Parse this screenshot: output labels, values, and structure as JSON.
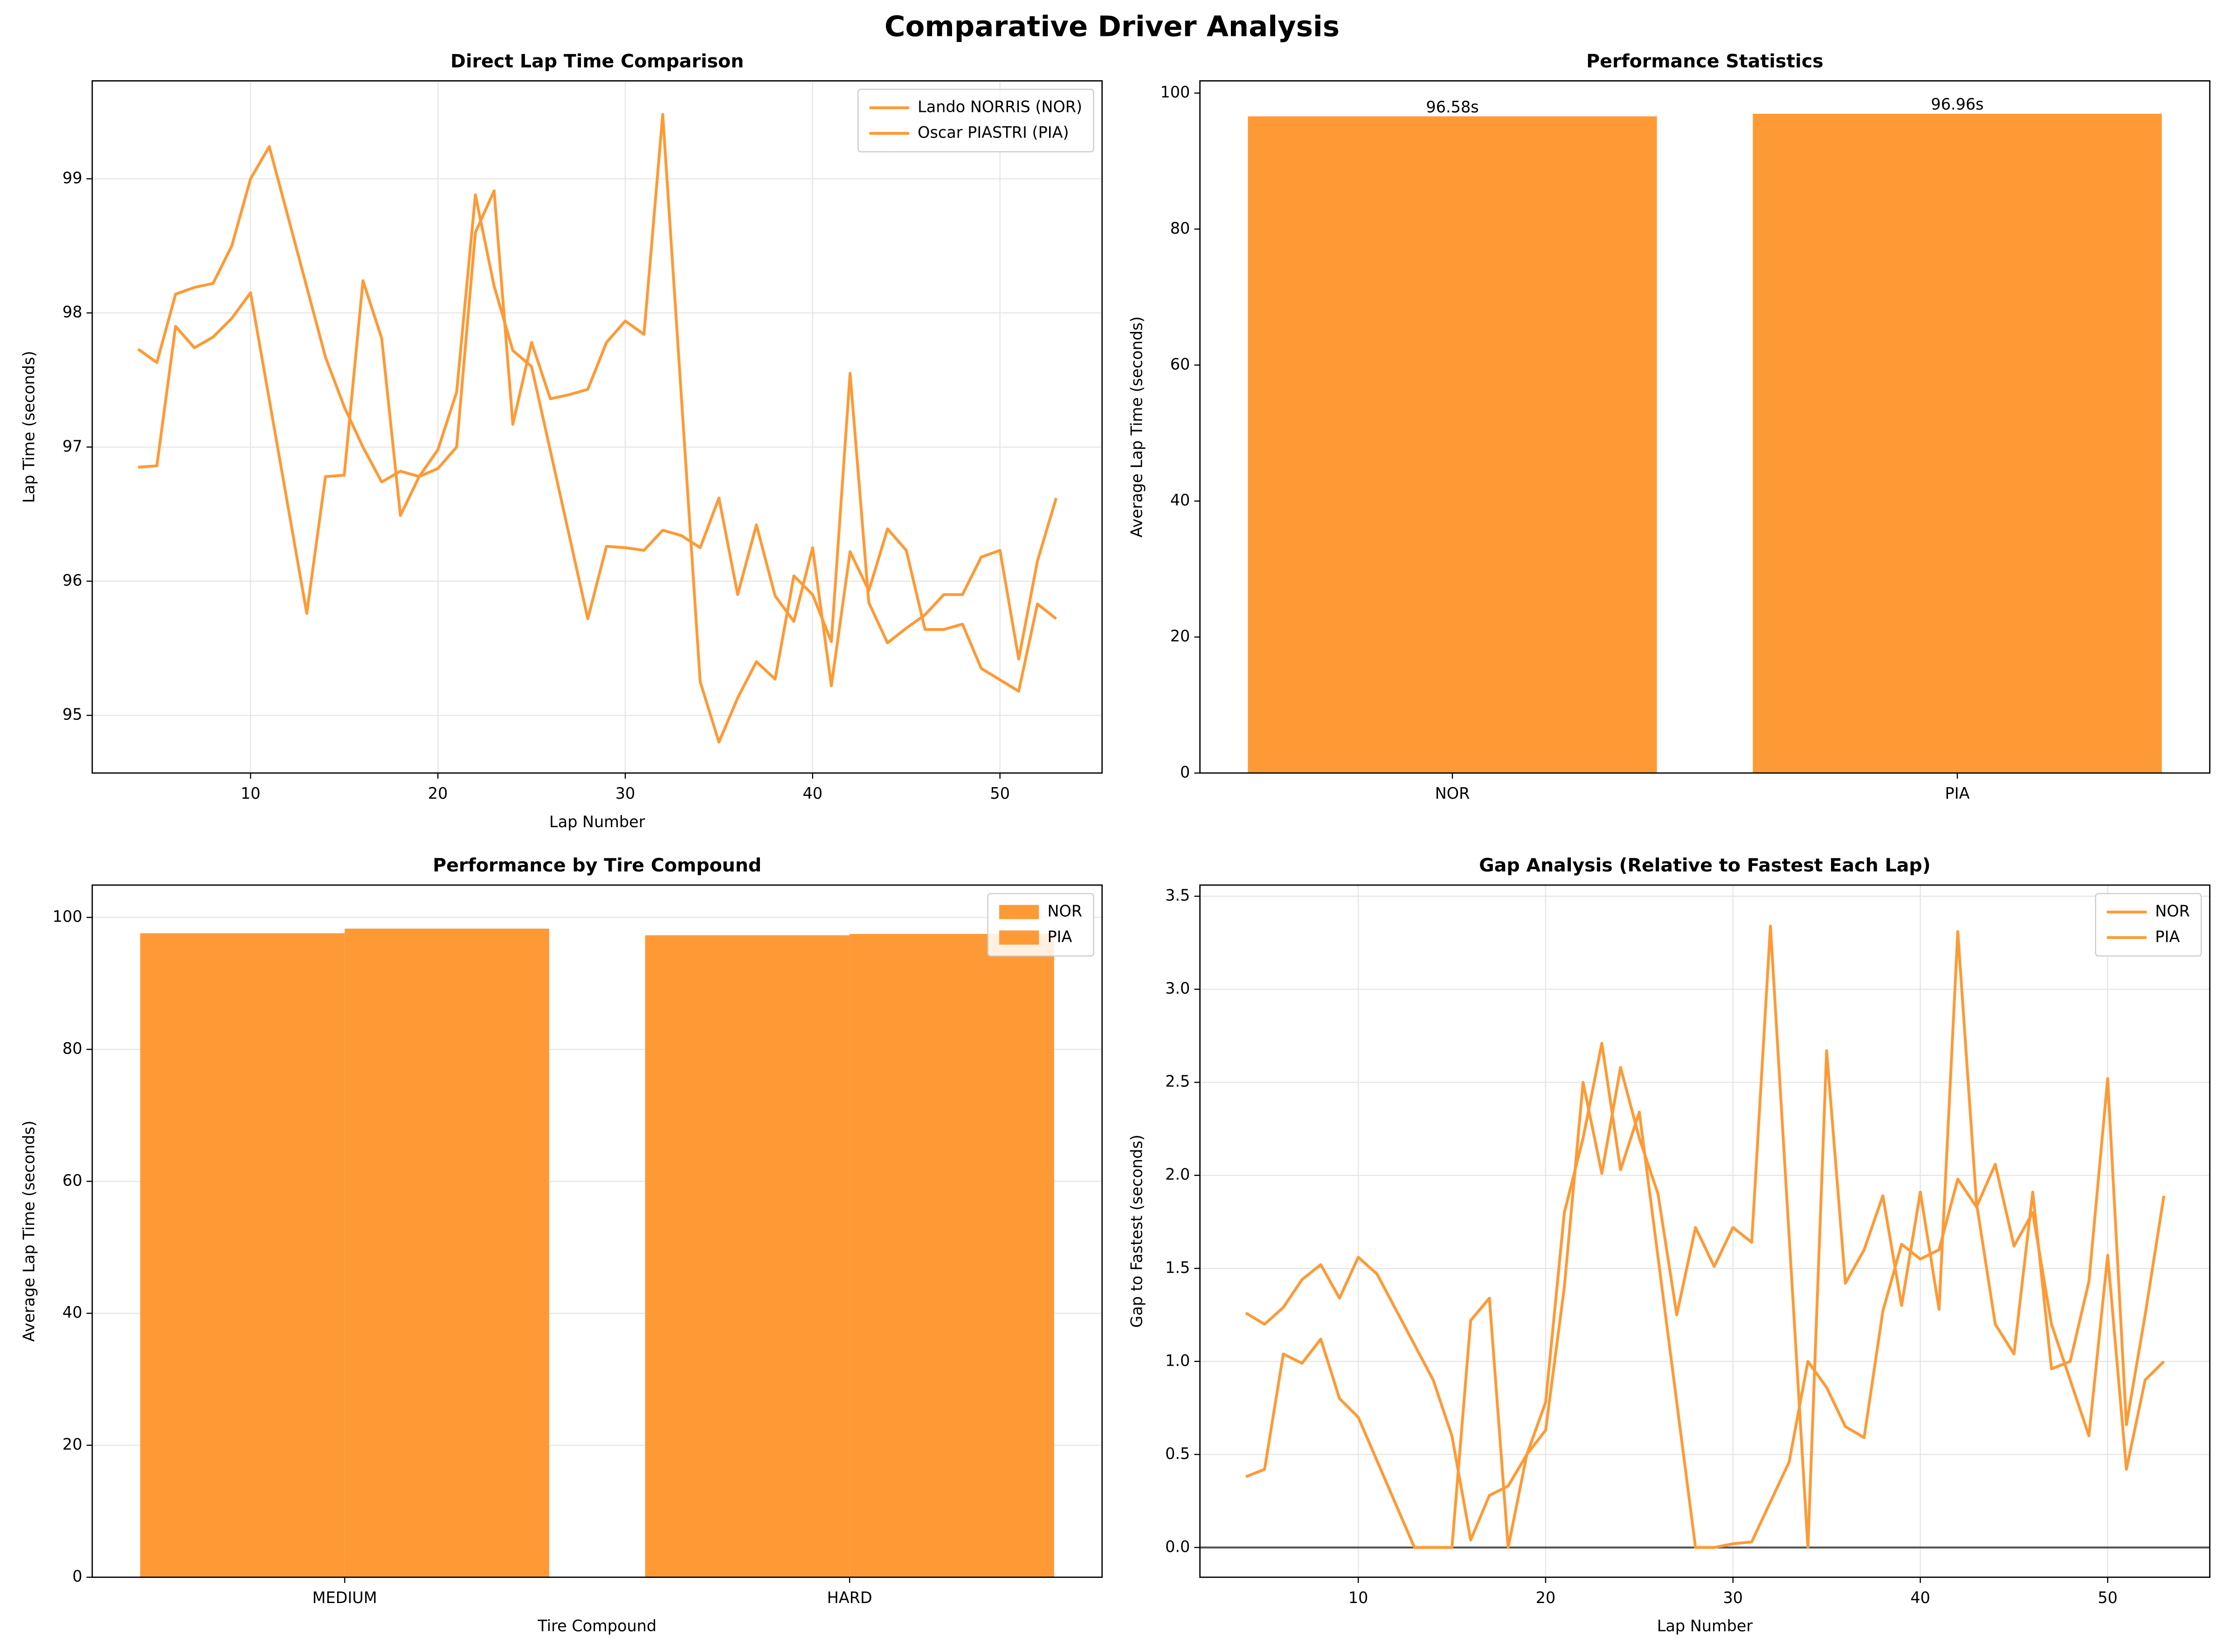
{
  "title": "Comparative Driver Analysis",
  "chart_data": [
    {
      "type": "line",
      "title": "Direct Lap Time Comparison",
      "xlabel": "Lap Number",
      "ylabel": "Lap Time (seconds)",
      "xlim": [
        1.55,
        55.45
      ],
      "xticks": [
        10,
        20,
        30,
        40,
        50
      ],
      "ylim": [
        94.57,
        99.73
      ],
      "yticks": [
        95,
        96,
        97,
        98,
        99
      ],
      "grid": true,
      "legend": "upper right",
      "series": [
        {
          "name": "Lando NORRIS (NOR)",
          "color": "#fe9a36",
          "x": [
            4,
            5,
            6,
            7,
            8,
            9,
            10,
            13,
            14,
            15,
            16,
            17,
            18,
            19,
            20,
            21,
            22,
            23,
            24,
            25,
            28,
            29,
            30,
            31,
            32,
            33,
            34,
            35,
            36,
            37,
            38,
            39,
            40,
            41,
            42,
            43,
            44,
            45,
            46,
            47,
            48,
            49,
            51,
            52,
            53
          ],
          "values": [
            96.85,
            96.86,
            97.9,
            97.74,
            97.82,
            97.96,
            98.15,
            95.76,
            96.78,
            96.79,
            98.24,
            97.81,
            96.49,
            96.78,
            96.98,
            97.41,
            98.88,
            98.2,
            97.72,
            97.6,
            95.72,
            96.26,
            96.25,
            96.23,
            96.38,
            96.34,
            96.25,
            96.62,
            95.9,
            96.42,
            95.89,
            95.7,
            96.25,
            95.22,
            96.22,
            95.93,
            96.39,
            96.23,
            95.64,
            95.64,
            95.68,
            95.35,
            95.18,
            95.83,
            95.72
          ]
        },
        {
          "name": "Oscar PIASTRI (PIA)",
          "color": "#fe9a36",
          "x": [
            4,
            5,
            6,
            7,
            8,
            9,
            10,
            11,
            14,
            15,
            16,
            17,
            18,
            19,
            20,
            21,
            22,
            23,
            24,
            25,
            26,
            27,
            28,
            29,
            30,
            31,
            32,
            34,
            35,
            36,
            37,
            38,
            39,
            40,
            41,
            42,
            43,
            44,
            45,
            46,
            47,
            48,
            49,
            50,
            51,
            52,
            53
          ],
          "values": [
            97.73,
            97.63,
            98.14,
            98.19,
            98.22,
            98.5,
            99.0,
            99.24,
            97.67,
            97.3,
            97.0,
            96.74,
            96.82,
            96.78,
            96.84,
            97.0,
            98.6,
            98.91,
            97.17,
            97.78,
            97.36,
            97.39,
            97.43,
            97.78,
            97.94,
            97.84,
            99.48,
            95.25,
            94.8,
            95.13,
            95.4,
            95.27,
            96.04,
            95.9,
            95.55,
            97.55,
            95.84,
            95.54,
            95.65,
            95.75,
            95.9,
            95.9,
            96.18,
            96.23,
            95.42,
            96.15,
            96.62
          ]
        }
      ]
    },
    {
      "type": "bar",
      "title": "Performance Statistics",
      "ylabel": "Average Lap Time (seconds)",
      "categories": [
        "NOR",
        "PIA"
      ],
      "values": [
        96.58,
        96.96
      ],
      "value_labels": [
        "96.58s",
        "96.96s"
      ],
      "color": "#fe9a36",
      "ylim": [
        0,
        101.8
      ],
      "yticks": [
        0,
        20,
        40,
        60,
        80,
        100
      ],
      "grid": false
    },
    {
      "type": "bar",
      "title": "Performance by Tire Compound",
      "xlabel": "Tire Compound",
      "ylabel": "Average Lap Time (seconds)",
      "categories": [
        "MEDIUM",
        "HARD"
      ],
      "ylim": [
        0,
        104.9
      ],
      "yticks": [
        0,
        20,
        40,
        60,
        80,
        100
      ],
      "grid": true,
      "legend": "upper right",
      "series": [
        {
          "name": "NOR",
          "color": "#fe9a36",
          "values": [
            97.6,
            97.3
          ]
        },
        {
          "name": "PIA",
          "color": "#fe9a36",
          "values": [
            98.3,
            97.5
          ]
        }
      ]
    },
    {
      "type": "line",
      "title": "Gap Analysis (Relative to Fastest Each Lap)",
      "xlabel": "Lap Number",
      "ylabel": "Gap to Fastest (seconds)",
      "xlim": [
        1.55,
        55.45
      ],
      "xticks": [
        10,
        20,
        30,
        40,
        50
      ],
      "ylim": [
        -0.16,
        3.56
      ],
      "yticks": [
        {
          "value": 0,
          "label": "0.0"
        },
        0.5,
        {
          "value": 1,
          "label": "1.0"
        },
        1.5,
        {
          "value": 2,
          "label": "2.0"
        },
        2.5,
        {
          "value": 3,
          "label": "3.0"
        },
        3.5
      ],
      "grid": true,
      "legend": "upper right",
      "hline": 0,
      "series": [
        {
          "name": "NOR",
          "color": "#fe9a36",
          "x": [
            4,
            5,
            6,
            7,
            8,
            9,
            10,
            13,
            14,
            15,
            16,
            17,
            18,
            19,
            20,
            21,
            22,
            23,
            24,
            25,
            28,
            29,
            30,
            31,
            33,
            34,
            35,
            36,
            37,
            38,
            39,
            40,
            41,
            42,
            43,
            44,
            45,
            46,
            47,
            49,
            50,
            51,
            52,
            53
          ],
          "values": [
            0.38,
            0.42,
            1.04,
            0.99,
            1.12,
            0.8,
            0.7,
            0,
            0,
            0,
            1.22,
            1.34,
            0,
            0.5,
            0.78,
            1.8,
            2.2,
            2.71,
            2.03,
            2.34,
            0,
            0,
            0.02,
            0.03,
            0.46,
            1.0,
            0.86,
            0.65,
            0.59,
            1.27,
            1.63,
            1.55,
            1.6,
            1.98,
            1.83,
            2.06,
            1.62,
            1.8,
            1.2,
            0.6,
            1.57,
            0.42,
            0.9,
            1.0
          ]
        },
        {
          "name": "PIA",
          "color": "#fe9a36",
          "x": [
            4,
            5,
            6,
            7,
            8,
            9,
            10,
            11,
            14,
            15,
            16,
            17,
            18,
            19,
            20,
            21,
            22,
            23,
            24,
            25,
            26,
            27,
            28,
            29,
            30,
            31,
            32,
            34,
            35,
            36,
            37,
            38,
            39,
            40,
            41,
            42,
            43,
            44,
            45,
            46,
            47,
            48,
            49,
            50,
            51,
            52,
            53
          ],
          "values": [
            1.26,
            1.2,
            1.29,
            1.44,
            1.52,
            1.34,
            1.56,
            1.47,
            0.9,
            0.6,
            0.04,
            0.28,
            0.33,
            0.5,
            0.63,
            1.4,
            2.5,
            2.01,
            2.58,
            2.2,
            1.9,
            1.25,
            1.72,
            1.51,
            1.72,
            1.64,
            3.34,
            0,
            2.67,
            1.42,
            1.6,
            1.89,
            1.3,
            1.91,
            1.28,
            3.31,
            1.85,
            1.2,
            1.04,
            1.91,
            0.96,
            1.0,
            1.43,
            2.52,
            0.66,
            1.25,
            1.89
          ]
        }
      ]
    }
  ]
}
